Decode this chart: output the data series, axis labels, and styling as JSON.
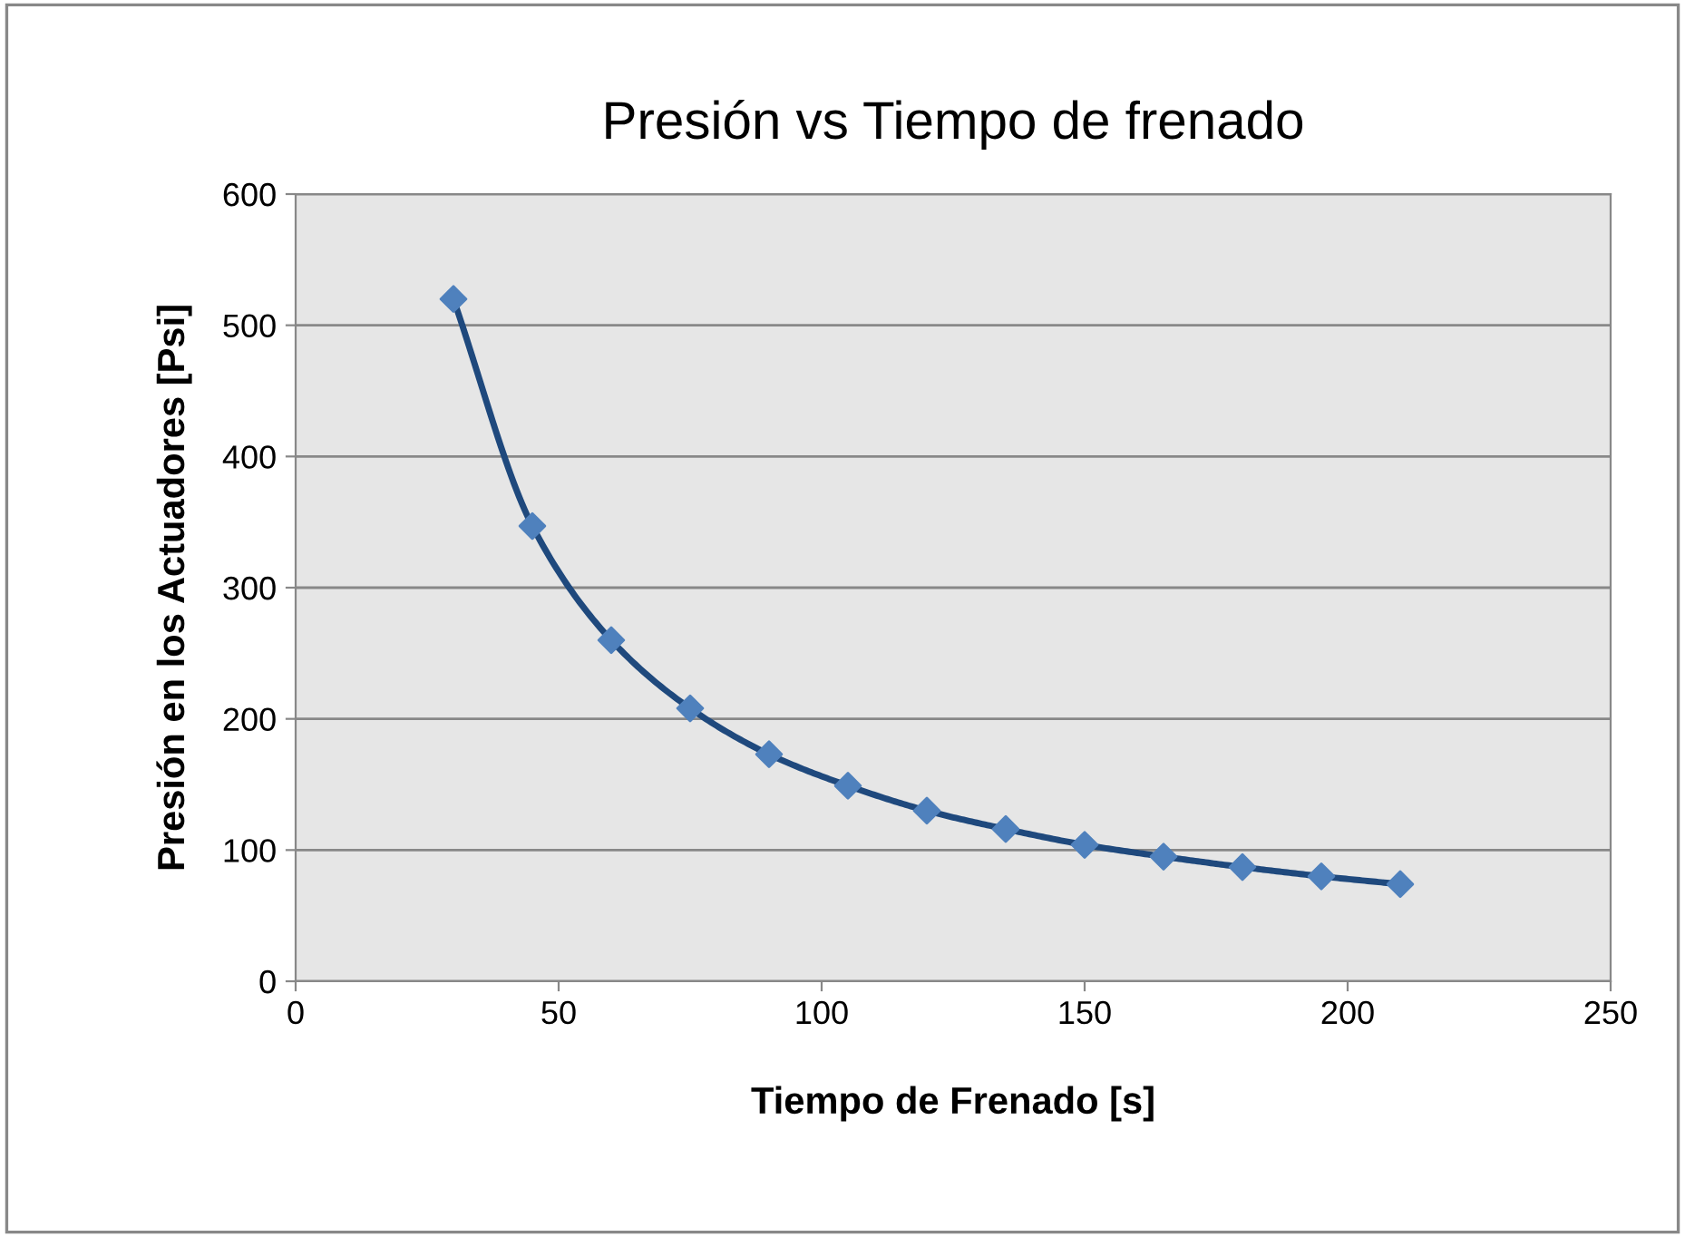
{
  "chart_data": {
    "type": "line",
    "title": "Presión vs Tiempo de frenado",
    "xlabel": "Tiempo de Frenado [s]",
    "ylabel": "Presión en los Actuadores [Psi]",
    "x": [
      30,
      45,
      60,
      75,
      90,
      105,
      120,
      135,
      150,
      165,
      180,
      195,
      210
    ],
    "series": [
      {
        "color": "#1f497d",
        "colors": [
          "#4f81bd",
          "#4f81bd",
          "#4f81bd",
          "#4f81bd",
          "#4f81bd",
          "#4f81bd",
          "#4f81bd",
          "#4f81bd",
          "#4f81bd",
          "#4f81bd",
          "#4f81bd",
          "#4f81bd",
          "#4f81bd"
        ],
        "values": [
          520,
          347,
          260,
          208,
          173,
          149,
          130,
          116,
          104,
          95,
          87,
          80,
          74
        ]
      }
    ],
    "xlim": [
      0,
      250
    ],
    "xticks": [
      0,
      50,
      100,
      150,
      200,
      250
    ],
    "ylim": [
      0,
      600
    ],
    "yticks": [
      0,
      100,
      200,
      300,
      400,
      500,
      600
    ],
    "grid": "y",
    "legend": false,
    "marker": "diamond",
    "line_style": "solid"
  }
}
